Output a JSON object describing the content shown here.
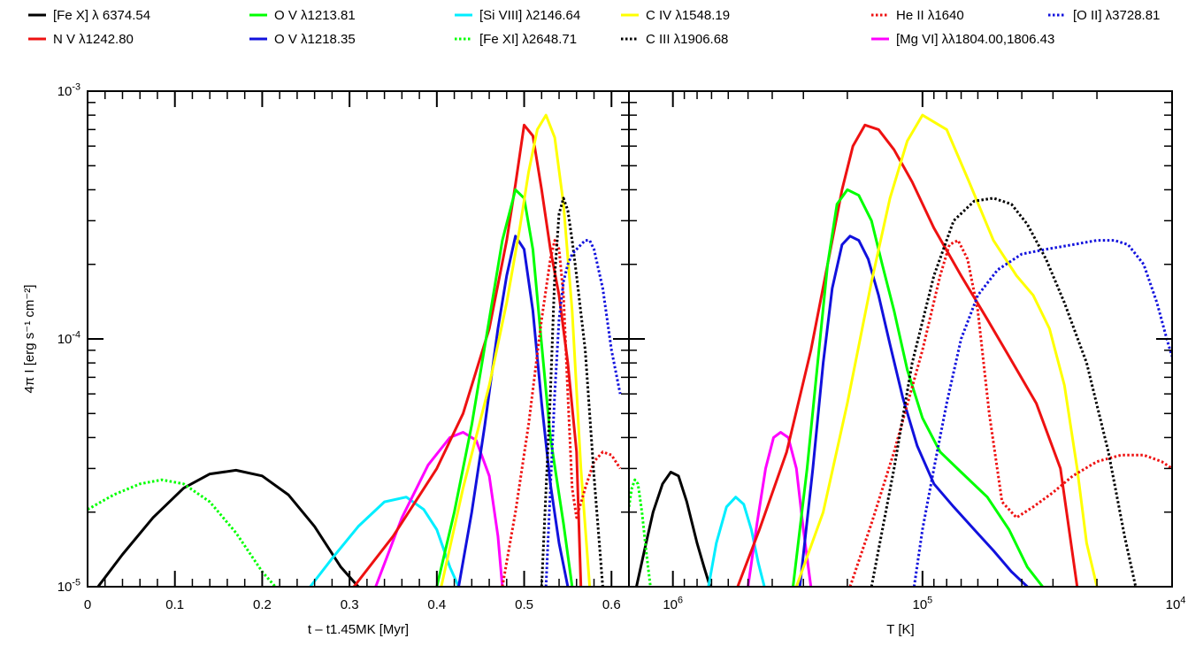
{
  "figure": {
    "y_label": "4π I [erg s⁻¹ cm⁻²]"
  },
  "legend": [
    {
      "label": "[Fe X] λ 6374.54",
      "color": "#000000",
      "dash": "solid"
    },
    {
      "label": "O V λ1213.81",
      "color": "#00ff00",
      "dash": "solid"
    },
    {
      "label": "[Si VIII] λ2146.64",
      "color": "#00eeff",
      "dash": "solid"
    },
    {
      "label": "C IV λ1548.19",
      "color": "#ffff00",
      "dash": "solid"
    },
    {
      "label": "He II λ1640",
      "color": "#ee1111",
      "dash": "dotted"
    },
    {
      "label": "[O II] λ3728.81",
      "color": "#1111dd",
      "dash": "dotted"
    },
    {
      "label": "N V λ1242.80",
      "color": "#ee1111",
      "dash": "solid"
    },
    {
      "label": "O V λ1218.35",
      "color": "#1111dd",
      "dash": "solid"
    },
    {
      "label": "[Fe XI] λ2648.71",
      "color": "#00ff00",
      "dash": "dotted"
    },
    {
      "label": "C III λ1906.68",
      "color": "#000000",
      "dash": "dotted"
    },
    {
      "label": "[Mg VI] λλ1804.00,1806.43",
      "color": "#ff00ff",
      "dash": "solid"
    }
  ],
  "chart_data": [
    {
      "type": "line",
      "xlabel": "t – t1.45MK [Myr]",
      "ylabel": "4π I [erg s-1 cm-2]",
      "xlim": [
        0,
        0.62
      ],
      "ylim": [
        1e-05,
        0.001
      ],
      "yscale": "log",
      "x_ticks": [
        "0",
        "0.1",
        "0.2",
        "0.3",
        "0.4",
        "0.5",
        "0.6"
      ],
      "y_ticks": [
        "10-5",
        "10-4",
        "10-3"
      ],
      "series": [
        {
          "name": "[Fe X] λ 6374.54",
          "x": [
            0.012,
            0.04,
            0.075,
            0.11,
            0.14,
            0.17,
            0.2,
            0.23,
            0.26,
            0.29,
            0.31
          ],
          "y": [
            1e-05,
            1.35e-05,
            1.9e-05,
            2.5e-05,
            2.85e-05,
            2.95e-05,
            2.8e-05,
            2.35e-05,
            1.75e-05,
            1.2e-05,
            1e-05
          ]
        },
        {
          "name": "[Fe XI] λ2648.71",
          "x": [
            0.0,
            0.03,
            0.06,
            0.085,
            0.11,
            0.14,
            0.17,
            0.2,
            0.215
          ],
          "y": [
            2.05e-05,
            2.35e-05,
            2.6e-05,
            2.7e-05,
            2.6e-05,
            2.2e-05,
            1.65e-05,
            1.15e-05,
            1e-05
          ]
        },
        {
          "name": "[Si VIII] λ2146.64",
          "x": [
            0.255,
            0.28,
            0.31,
            0.34,
            0.365,
            0.385,
            0.4,
            0.415,
            0.425
          ],
          "y": [
            1e-05,
            1.3e-05,
            1.75e-05,
            2.2e-05,
            2.3e-05,
            2.05e-05,
            1.7e-05,
            1.2e-05,
            1e-05
          ]
        },
        {
          "name": "[Mg VI] λλ1804.00,1806.43",
          "x": [
            0.33,
            0.36,
            0.39,
            0.415,
            0.43,
            0.445,
            0.46,
            0.47,
            0.475
          ],
          "y": [
            1e-05,
            1.9e-05,
            3.1e-05,
            4e-05,
            4.2e-05,
            3.9e-05,
            2.8e-05,
            1.6e-05,
            1e-05
          ]
        },
        {
          "name": "N V λ1242.80",
          "x": [
            0.305,
            0.35,
            0.4,
            0.43,
            0.46,
            0.48,
            0.49,
            0.5,
            0.51,
            0.52,
            0.53,
            0.54,
            0.55,
            0.56,
            0.565
          ],
          "y": [
            1e-05,
            1.6e-05,
            3e-05,
            5e-05,
            0.00011,
            0.00025,
            0.00042,
            0.00073,
            0.00066,
            0.0004,
            0.00023,
            0.00015,
            8e-05,
            3.5e-05,
            1e-05
          ]
        },
        {
          "name": "O V λ1213.81",
          "x": [
            0.4,
            0.42,
            0.44,
            0.46,
            0.475,
            0.49,
            0.5,
            0.51,
            0.52,
            0.53,
            0.545,
            0.555
          ],
          "y": [
            1e-05,
            2e-05,
            4.5e-05,
            0.00012,
            0.00025,
            0.0004,
            0.00037,
            0.00023,
            9.5e-05,
            4e-05,
            1.8e-05,
            1e-05
          ]
        },
        {
          "name": "O V λ1218.35",
          "x": [
            0.425,
            0.44,
            0.455,
            0.47,
            0.48,
            0.49,
            0.5,
            0.51,
            0.52,
            0.53,
            0.54,
            0.55
          ],
          "y": [
            1e-05,
            2e-05,
            4.5e-05,
            0.00011,
            0.00018,
            0.00026,
            0.00023,
            0.00013,
            5.5e-05,
            2.6e-05,
            1.5e-05,
            1e-05
          ]
        },
        {
          "name": "C IV λ1548.19",
          "x": [
            0.405,
            0.43,
            0.46,
            0.48,
            0.495,
            0.505,
            0.515,
            0.525,
            0.535,
            0.545,
            0.555,
            0.565,
            0.575
          ],
          "y": [
            1e-05,
            2.5e-05,
            6.5e-05,
            0.00014,
            0.00028,
            0.00047,
            0.0007,
            0.0008,
            0.00065,
            0.00035,
            0.00013,
            3e-05,
            1e-05
          ]
        },
        {
          "name": "He II λ1640",
          "x": [
            0.475,
            0.49,
            0.505,
            0.52,
            0.53,
            0.535,
            0.54,
            0.545,
            0.55,
            0.555,
            0.56,
            0.57,
            0.58,
            0.59,
            0.6,
            0.61
          ],
          "y": [
            1e-05,
            2e-05,
            4.5e-05,
            0.00012,
            0.00021,
            0.00025,
            0.00023,
            0.00015,
            6e-05,
            2.5e-05,
            1.9e-05,
            2.5e-05,
            3.2e-05,
            3.5e-05,
            3.4e-05,
            3e-05
          ]
        },
        {
          "name": "C III λ1906.68",
          "x": [
            0.52,
            0.53,
            0.535,
            0.54,
            0.545,
            0.55,
            0.555,
            0.56,
            0.57,
            0.58,
            0.59
          ],
          "y": [
            1e-05,
            6e-05,
            0.00018,
            0.00032,
            0.00037,
            0.00033,
            0.00025,
            0.00018,
            9e-05,
            2.8e-05,
            1e-05
          ]
        },
        {
          "name": "[O II] λ3728.81",
          "x": [
            0.525,
            0.53,
            0.535,
            0.54,
            0.545,
            0.55,
            0.555,
            0.56,
            0.565,
            0.57,
            0.575,
            0.58,
            0.59,
            0.6,
            0.61
          ],
          "y": [
            1e-05,
            2.5e-05,
            6e-05,
            0.00012,
            0.00017,
            0.0002,
            0.00022,
            0.00023,
            0.00024,
            0.00025,
            0.00025,
            0.00023,
            0.00016,
            9e-05,
            6e-05
          ]
        }
      ]
    },
    {
      "type": "line",
      "xlabel": "T [K]",
      "ylabel": "4π I [erg s-1 cm-2]",
      "xlim": [
        1500000.0,
        10000.0
      ],
      "xscale": "log",
      "x_reversed": true,
      "ylim": [
        1e-05,
        0.001
      ],
      "yscale": "log",
      "x_ticks": [
        "106",
        "105",
        "104"
      ],
      "y_ticks": [
        "10-5",
        "10-4",
        "10-3"
      ],
      "series": [
        {
          "name": "[Fe X] λ 6374.54",
          "x": [
            1400000.0,
            1300000.0,
            1200000.0,
            1100000.0,
            1020000.0,
            950000.0,
            880000.0,
            800000.0,
            750000.0,
            710000.0
          ],
          "y": [
            1e-05,
            1.4e-05,
            2e-05,
            2.6e-05,
            2.9e-05,
            2.8e-05,
            2.2e-05,
            1.5e-05,
            1.2e-05,
            1e-05
          ]
        },
        {
          "name": "[Fe XI] λ2648.71",
          "x": [
            1500000.0,
            1460000.0,
            1420000.0,
            1380000.0,
            1330000.0,
            1280000.0,
            1230000.0
          ],
          "y": [
            2.1e-05,
            2.5e-05,
            2.7e-05,
            2.6e-05,
            2e-05,
            1.4e-05,
            1e-05
          ]
        },
        {
          "name": "[Si VIII] λ2146.64",
          "x": [
            720000.0,
            670000.0,
            610000.0,
            560000.0,
            520000.0,
            485000.0,
            455000.0,
            430000.0
          ],
          "y": [
            1e-05,
            1.5e-05,
            2.1e-05,
            2.3e-05,
            2.15e-05,
            1.7e-05,
            1.25e-05,
            1e-05
          ]
        },
        {
          "name": "[Mg VI] λλ1804.00,1806.43",
          "x": [
            500000.0,
            460000.0,
            425000.0,
            395000.0,
            370000.0,
            345000.0,
            320000.0,
            300000.0,
            280000.0
          ],
          "y": [
            1e-05,
            1.8e-05,
            3e-05,
            4e-05,
            4.2e-05,
            4e-05,
            3e-05,
            1.7e-05,
            1e-05
          ]
        },
        {
          "name": "N V λ1242.80",
          "x": [
            550000.0,
            450000.0,
            350000.0,
            280000.0,
            240000.0,
            210000.0,
            190000.0,
            170000.0,
            150000.0,
            130000.0,
            110000.0,
            90000.0,
            70000.0,
            55000.0,
            45000.0,
            35000.0,
            28000.0,
            24000.0
          ],
          "y": [
            1e-05,
            1.7e-05,
            3.5e-05,
            9e-05,
            0.0002,
            0.0004,
            0.0006,
            0.00073,
            0.0007,
            0.00058,
            0.00043,
            0.00028,
            0.00018,
            0.00012,
            8.5e-05,
            5.5e-05,
            3e-05,
            1e-05
          ]
        },
        {
          "name": "O V λ1213.81",
          "x": [
            330000.0,
            290000.0,
            260000.0,
            240000.0,
            220000.0,
            200000.0,
            180000.0,
            160000.0,
            145000.0,
            130000.0,
            115000.0,
            100000.0,
            85000.0,
            70000.0,
            55000.0,
            45000.0,
            38000.0,
            33000.0
          ],
          "y": [
            1e-05,
            3e-05,
            9e-05,
            0.0002,
            0.00035,
            0.0004,
            0.00038,
            0.0003,
            0.0002,
            0.00013,
            7.5e-05,
            4.8e-05,
            3.5e-05,
            2.9e-05,
            2.3e-05,
            1.7e-05,
            1.2e-05,
            1e-05
          ]
        },
        {
          "name": "O V λ1218.35",
          "x": [
            310000.0,
            275000.0,
            250000.0,
            230000.0,
            210000.0,
            195000.0,
            180000.0,
            165000.0,
            150000.0,
            135000.0,
            120000.0,
            105000.0,
            90000.0,
            75000.0,
            62000.0,
            52000.0,
            44000.0,
            38000.0
          ],
          "y": [
            1e-05,
            3e-05,
            8e-05,
            0.00016,
            0.00024,
            0.00026,
            0.00025,
            0.00021,
            0.00015,
            9.5e-05,
            5.8e-05,
            3.7e-05,
            2.6e-05,
            2.1e-05,
            1.7e-05,
            1.4e-05,
            1.15e-05,
            1e-05
          ]
        },
        {
          "name": "C IV λ1548.19",
          "x": [
            320000.0,
            250000.0,
            200000.0,
            160000.0,
            135000.0,
            115000.0,
            100000.0,
            80000.0,
            65000.0,
            52000.0,
            42000.0,
            36000.0,
            31000.0,
            27000.0,
            24000.0,
            22000.0,
            20000.0
          ],
          "y": [
            1e-05,
            2e-05,
            5.5e-05,
            0.00017,
            0.00037,
            0.00063,
            0.0008,
            0.0007,
            0.00043,
            0.00025,
            0.00018,
            0.00015,
            0.00011,
            6.5e-05,
            3e-05,
            1.5e-05,
            1e-05
          ]
        },
        {
          "name": "He II λ1640",
          "x": [
            195000.0,
            160000.0,
            130000.0,
            100000.0,
            85000.0,
            78000.0,
            72000.0,
            66000.0,
            60000.0,
            54000.0,
            48000.0,
            42000.0,
            36000.0,
            30000.0,
            25000.0,
            20000.0,
            16000.0,
            13000.0,
            11000.0,
            10000.0
          ],
          "y": [
            1e-05,
            1.8e-05,
            3.5e-05,
            9e-05,
            0.00018,
            0.00024,
            0.00025,
            0.00021,
            0.00013,
            5e-05,
            2.2e-05,
            1.9e-05,
            2.1e-05,
            2.4e-05,
            2.8e-05,
            3.2e-05,
            3.4e-05,
            3.4e-05,
            3.2e-05,
            3e-05
          ]
        },
        {
          "name": "C III λ1906.68",
          "x": [
            160000.0,
            130000.0,
            110000.0,
            90000.0,
            75000.0,
            62000.0,
            52000.0,
            44000.0,
            38000.0,
            32000.0,
            27000.0,
            22000.0,
            18000.0,
            15500.0,
            14000.0
          ],
          "y": [
            1e-05,
            3e-05,
            8e-05,
            0.00018,
            0.0003,
            0.00036,
            0.00037,
            0.00035,
            0.00029,
            0.00021,
            0.00014,
            8e-05,
            3.5e-05,
            1.6e-05,
            1e-05
          ]
        },
        {
          "name": "[O II] λ3728.81",
          "x": [
            108000.0,
            100000.0,
            90000.0,
            80000.0,
            70000.0,
            60000.0,
            50000.0,
            40000.0,
            32000.0,
            25000.0,
            20000.0,
            17000.0,
            15000.0,
            13000.0,
            11500.0,
            10500.0,
            10000.0
          ],
          "y": [
            1e-05,
            1.7e-05,
            3e-05,
            5.5e-05,
            0.0001,
            0.00015,
            0.00019,
            0.00022,
            0.00023,
            0.00024,
            0.00025,
            0.00025,
            0.00024,
            0.0002,
            0.00014,
            0.0001,
            8.5e-05
          ]
        }
      ]
    }
  ]
}
